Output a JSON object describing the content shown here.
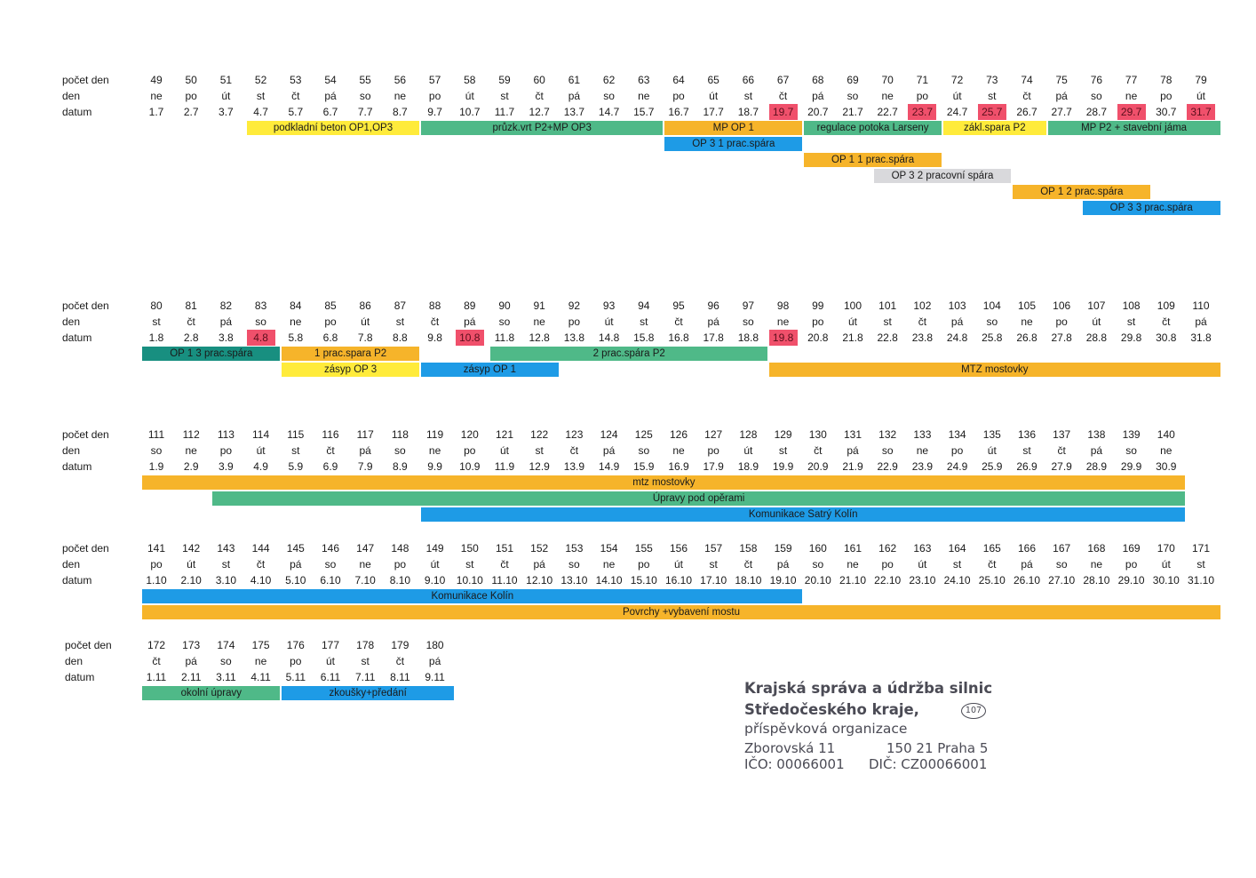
{
  "labels": {
    "row1": "počet den",
    "row2": "den",
    "row3": "datum"
  },
  "colors": {
    "yellow": "#ffeb3b",
    "green": "#4fb988",
    "orange": "#f6b42a",
    "blue": "#1e9be6",
    "teal": "#188f80",
    "gray": "#d9d9dc",
    "red": "#f0506b"
  },
  "blocks": [
    {
      "days": [
        {
          "n": "49",
          "d": "ne",
          "date": "1.7"
        },
        {
          "n": "50",
          "d": "po",
          "date": "2.7"
        },
        {
          "n": "51",
          "d": "út",
          "date": "3.7"
        },
        {
          "n": "52",
          "d": "st",
          "date": "4.7"
        },
        {
          "n": "53",
          "d": "čt",
          "date": "5.7"
        },
        {
          "n": "54",
          "d": "pá",
          "date": "6.7"
        },
        {
          "n": "55",
          "d": "so",
          "date": "7.7"
        },
        {
          "n": "56",
          "d": "ne",
          "date": "8.7"
        },
        {
          "n": "57",
          "d": "po",
          "date": "9.7"
        },
        {
          "n": "58",
          "d": "út",
          "date": "10.7"
        },
        {
          "n": "59",
          "d": "st",
          "date": "11.7"
        },
        {
          "n": "60",
          "d": "čt",
          "date": "12.7"
        },
        {
          "n": "61",
          "d": "pá",
          "date": "13.7"
        },
        {
          "n": "62",
          "d": "so",
          "date": "14.7"
        },
        {
          "n": "63",
          "d": "ne",
          "date": "15.7"
        },
        {
          "n": "64",
          "d": "po",
          "date": "16.7"
        },
        {
          "n": "65",
          "d": "út",
          "date": "17.7"
        },
        {
          "n": "66",
          "d": "st",
          "date": "18.7"
        },
        {
          "n": "67",
          "d": "čt",
          "date": "19.7",
          "hl": true
        },
        {
          "n": "68",
          "d": "pá",
          "date": "20.7"
        },
        {
          "n": "69",
          "d": "so",
          "date": "21.7"
        },
        {
          "n": "70",
          "d": "ne",
          "date": "22.7"
        },
        {
          "n": "71",
          "d": "po",
          "date": "23.7",
          "hl": true
        },
        {
          "n": "72",
          "d": "út",
          "date": "24.7"
        },
        {
          "n": "73",
          "d": "st",
          "date": "25.7",
          "hl": true
        },
        {
          "n": "74",
          "d": "čt",
          "date": "26.7"
        },
        {
          "n": "75",
          "d": "pá",
          "date": "27.7"
        },
        {
          "n": "76",
          "d": "so",
          "date": "28.7"
        },
        {
          "n": "77",
          "d": "ne",
          "date": "29.7",
          "hl": true
        },
        {
          "n": "78",
          "d": "po",
          "date": "30.7"
        },
        {
          "n": "79",
          "d": "út",
          "date": "31.7",
          "hl": true
        }
      ],
      "bars": [
        {
          "label": "podkladní beton OP1,OP3",
          "color": "yellow",
          "from": 3,
          "to": 7,
          "lane": 0
        },
        {
          "label": "průzk.vrt P2+MP OP3",
          "color": "green",
          "from": 8,
          "to": 14,
          "lane": 0
        },
        {
          "label": "MP OP 1",
          "color": "orange",
          "from": 15,
          "to": 18,
          "lane": 0
        },
        {
          "label": "regulace potoka Larseny",
          "color": "green",
          "from": 19,
          "to": 22,
          "lane": 0
        },
        {
          "label": "zákl.spara P2",
          "color": "yellow",
          "from": 23,
          "to": 25,
          "lane": 0
        },
        {
          "label": "MP P2 + stavební jáma",
          "color": "green",
          "from": 26,
          "to": 30,
          "lane": 0
        },
        {
          "label": "OP 3 1 prac.spára",
          "color": "blue",
          "from": 15,
          "to": 18,
          "lane": 1
        },
        {
          "label": "OP 1 1 prac.spára",
          "color": "orange",
          "from": 19,
          "to": 22,
          "lane": 2
        },
        {
          "label": "OP 3 2 pracovní spára",
          "color": "gray",
          "from": 21,
          "to": 24,
          "lane": 3
        },
        {
          "label": "OP 1 2 prac.spára",
          "color": "orange",
          "from": 25,
          "to": 28,
          "lane": 4
        },
        {
          "label": "OP 3 3 prac.spára",
          "color": "blue",
          "from": 27,
          "to": 30,
          "lane": 5
        }
      ]
    },
    {
      "days": [
        {
          "n": "80",
          "d": "st",
          "date": "1.8"
        },
        {
          "n": "81",
          "d": "čt",
          "date": "2.8"
        },
        {
          "n": "82",
          "d": "pá",
          "date": "3.8"
        },
        {
          "n": "83",
          "d": "so",
          "date": "4.8",
          "hl": true
        },
        {
          "n": "84",
          "d": "ne",
          "date": "5.8"
        },
        {
          "n": "85",
          "d": "po",
          "date": "6.8"
        },
        {
          "n": "86",
          "d": "út",
          "date": "7.8"
        },
        {
          "n": "87",
          "d": "st",
          "date": "8.8"
        },
        {
          "n": "88",
          "d": "čt",
          "date": "9.8"
        },
        {
          "n": "89",
          "d": "pá",
          "date": "10.8",
          "hl": true
        },
        {
          "n": "90",
          "d": "so",
          "date": "11.8"
        },
        {
          "n": "91",
          "d": "ne",
          "date": "12.8"
        },
        {
          "n": "92",
          "d": "po",
          "date": "13.8"
        },
        {
          "n": "93",
          "d": "út",
          "date": "14.8"
        },
        {
          "n": "94",
          "d": "st",
          "date": "15.8"
        },
        {
          "n": "95",
          "d": "čt",
          "date": "16.8"
        },
        {
          "n": "96",
          "d": "pá",
          "date": "17.8"
        },
        {
          "n": "97",
          "d": "so",
          "date": "18.8"
        },
        {
          "n": "98",
          "d": "ne",
          "date": "19.8",
          "hl": true
        },
        {
          "n": "99",
          "d": "po",
          "date": "20.8"
        },
        {
          "n": "100",
          "d": "út",
          "date": "21.8"
        },
        {
          "n": "101",
          "d": "st",
          "date": "22.8"
        },
        {
          "n": "102",
          "d": "čt",
          "date": "23.8"
        },
        {
          "n": "103",
          "d": "pá",
          "date": "24.8"
        },
        {
          "n": "104",
          "d": "so",
          "date": "25.8"
        },
        {
          "n": "105",
          "d": "ne",
          "date": "26.8"
        },
        {
          "n": "106",
          "d": "po",
          "date": "27.8"
        },
        {
          "n": "107",
          "d": "út",
          "date": "28.8"
        },
        {
          "n": "108",
          "d": "st",
          "date": "29.8"
        },
        {
          "n": "109",
          "d": "čt",
          "date": "30.8"
        },
        {
          "n": "110",
          "d": "pá",
          "date": "31.8"
        }
      ],
      "bars": [
        {
          "label": "OP 1 3 prac.spára",
          "color": "teal",
          "from": 0,
          "to": 3,
          "lane": 0
        },
        {
          "label": "1 prac.spara P2",
          "color": "orange",
          "from": 4,
          "to": 7,
          "lane": 0
        },
        {
          "label": "2 prac.spára P2",
          "color": "green",
          "from": 10,
          "to": 17,
          "lane": 0
        },
        {
          "label": "zásyp OP 3",
          "color": "yellow",
          "from": 4,
          "to": 7,
          "lane": 1
        },
        {
          "label": "zásyp OP 1",
          "color": "blue",
          "from": 8,
          "to": 11,
          "lane": 1
        },
        {
          "label": "MTZ mostovky",
          "color": "orange",
          "from": 18,
          "to": 30,
          "lane": 1
        }
      ]
    },
    {
      "days": [
        {
          "n": "111",
          "d": "so",
          "date": "1.9"
        },
        {
          "n": "112",
          "d": "ne",
          "date": "2.9"
        },
        {
          "n": "113",
          "d": "po",
          "date": "3.9"
        },
        {
          "n": "114",
          "d": "út",
          "date": "4.9"
        },
        {
          "n": "115",
          "d": "st",
          "date": "5.9"
        },
        {
          "n": "116",
          "d": "čt",
          "date": "6.9"
        },
        {
          "n": "117",
          "d": "pá",
          "date": "7.9"
        },
        {
          "n": "118",
          "d": "so",
          "date": "8.9"
        },
        {
          "n": "119",
          "d": "ne",
          "date": "9.9"
        },
        {
          "n": "120",
          "d": "po",
          "date": "10.9"
        },
        {
          "n": "121",
          "d": "út",
          "date": "11.9"
        },
        {
          "n": "122",
          "d": "st",
          "date": "12.9"
        },
        {
          "n": "123",
          "d": "čt",
          "date": "13.9"
        },
        {
          "n": "124",
          "d": "pá",
          "date": "14.9"
        },
        {
          "n": "125",
          "d": "so",
          "date": "15.9"
        },
        {
          "n": "126",
          "d": "ne",
          "date": "16.9"
        },
        {
          "n": "127",
          "d": "po",
          "date": "17.9"
        },
        {
          "n": "128",
          "d": "út",
          "date": "18.9"
        },
        {
          "n": "129",
          "d": "st",
          "date": "19.9"
        },
        {
          "n": "130",
          "d": "čt",
          "date": "20.9"
        },
        {
          "n": "131",
          "d": "pá",
          "date": "21.9"
        },
        {
          "n": "132",
          "d": "so",
          "date": "22.9"
        },
        {
          "n": "133",
          "d": "ne",
          "date": "23.9"
        },
        {
          "n": "134",
          "d": "po",
          "date": "24.9"
        },
        {
          "n": "135",
          "d": "út",
          "date": "25.9"
        },
        {
          "n": "136",
          "d": "st",
          "date": "26.9"
        },
        {
          "n": "137",
          "d": "čt",
          "date": "27.9"
        },
        {
          "n": "138",
          "d": "pá",
          "date": "28.9"
        },
        {
          "n": "139",
          "d": "so",
          "date": "29.9"
        },
        {
          "n": "140",
          "d": "ne",
          "date": "30.9"
        }
      ],
      "bars": [
        {
          "label": "mtz mostovky",
          "color": "orange",
          "from": 0,
          "to": 29,
          "lane": 0
        },
        {
          "label": "Úpravy pod opěrami",
          "color": "green",
          "from": 2,
          "to": 29,
          "lane": 1
        },
        {
          "label": "Komunikace Satrý Kolín",
          "color": "blue",
          "from": 8,
          "to": 29,
          "lane": 2
        }
      ]
    },
    {
      "days": [
        {
          "n": "141",
          "d": "po",
          "date": "1.10"
        },
        {
          "n": "142",
          "d": "út",
          "date": "2.10"
        },
        {
          "n": "143",
          "d": "st",
          "date": "3.10"
        },
        {
          "n": "144",
          "d": "čt",
          "date": "4.10"
        },
        {
          "n": "145",
          "d": "pá",
          "date": "5.10"
        },
        {
          "n": "146",
          "d": "so",
          "date": "6.10"
        },
        {
          "n": "147",
          "d": "ne",
          "date": "7.10"
        },
        {
          "n": "148",
          "d": "po",
          "date": "8.10"
        },
        {
          "n": "149",
          "d": "út",
          "date": "9.10"
        },
        {
          "n": "150",
          "d": "st",
          "date": "10.10"
        },
        {
          "n": "151",
          "d": "čt",
          "date": "11.10"
        },
        {
          "n": "152",
          "d": "pá",
          "date": "12.10"
        },
        {
          "n": "153",
          "d": "so",
          "date": "13.10"
        },
        {
          "n": "154",
          "d": "ne",
          "date": "14.10"
        },
        {
          "n": "155",
          "d": "po",
          "date": "15.10"
        },
        {
          "n": "156",
          "d": "út",
          "date": "16.10"
        },
        {
          "n": "157",
          "d": "st",
          "date": "17.10"
        },
        {
          "n": "158",
          "d": "čt",
          "date": "18.10"
        },
        {
          "n": "159",
          "d": "pá",
          "date": "19.10"
        },
        {
          "n": "160",
          "d": "so",
          "date": "20.10"
        },
        {
          "n": "161",
          "d": "ne",
          "date": "21.10"
        },
        {
          "n": "162",
          "d": "po",
          "date": "22.10"
        },
        {
          "n": "163",
          "d": "út",
          "date": "23.10"
        },
        {
          "n": "164",
          "d": "st",
          "date": "24.10"
        },
        {
          "n": "165",
          "d": "čt",
          "date": "25.10"
        },
        {
          "n": "166",
          "d": "pá",
          "date": "26.10"
        },
        {
          "n": "167",
          "d": "so",
          "date": "27.10"
        },
        {
          "n": "168",
          "d": "ne",
          "date": "28.10"
        },
        {
          "n": "169",
          "d": "po",
          "date": "29.10"
        },
        {
          "n": "170",
          "d": "út",
          "date": "30.10"
        },
        {
          "n": "171",
          "d": "st",
          "date": "31.10"
        }
      ],
      "bars": [
        {
          "label": "Komunikace Kolín",
          "color": "blue",
          "from": 0,
          "to": 18,
          "lane": 0
        },
        {
          "label": "Povrchy +vybavení mostu",
          "color": "orange",
          "from": 0,
          "to": 30,
          "lane": 1
        }
      ]
    },
    {
      "days": [
        {
          "n": "172",
          "d": "čt",
          "date": "1.11"
        },
        {
          "n": "173",
          "d": "pá",
          "date": "2.11"
        },
        {
          "n": "174",
          "d": "so",
          "date": "3.11"
        },
        {
          "n": "175",
          "d": "ne",
          "date": "4.11"
        },
        {
          "n": "176",
          "d": "po",
          "date": "5.11"
        },
        {
          "n": "177",
          "d": "út",
          "date": "6.11"
        },
        {
          "n": "178",
          "d": "st",
          "date": "7.11"
        },
        {
          "n": "179",
          "d": "čt",
          "date": "8.11"
        },
        {
          "n": "180",
          "d": "pá",
          "date": "9.11"
        }
      ],
      "bars": [
        {
          "label": "okolní úpravy",
          "color": "green",
          "from": 0,
          "to": 3,
          "lane": 0
        },
        {
          "label": "zkoušky+předání",
          "color": "blue",
          "from": 4,
          "to": 8,
          "lane": 0
        }
      ]
    }
  ],
  "stamp": {
    "line1": "Krajská správa a údržba silnic",
    "line2": "Středočeského kraje,",
    "line3": "příspěvková organizace",
    "street": "Zborovská 11",
    "city": "150 21 Praha 5",
    "ico": "IČO: 00066001",
    "dic": "DIČ: CZ00066001",
    "seal": "107"
  }
}
